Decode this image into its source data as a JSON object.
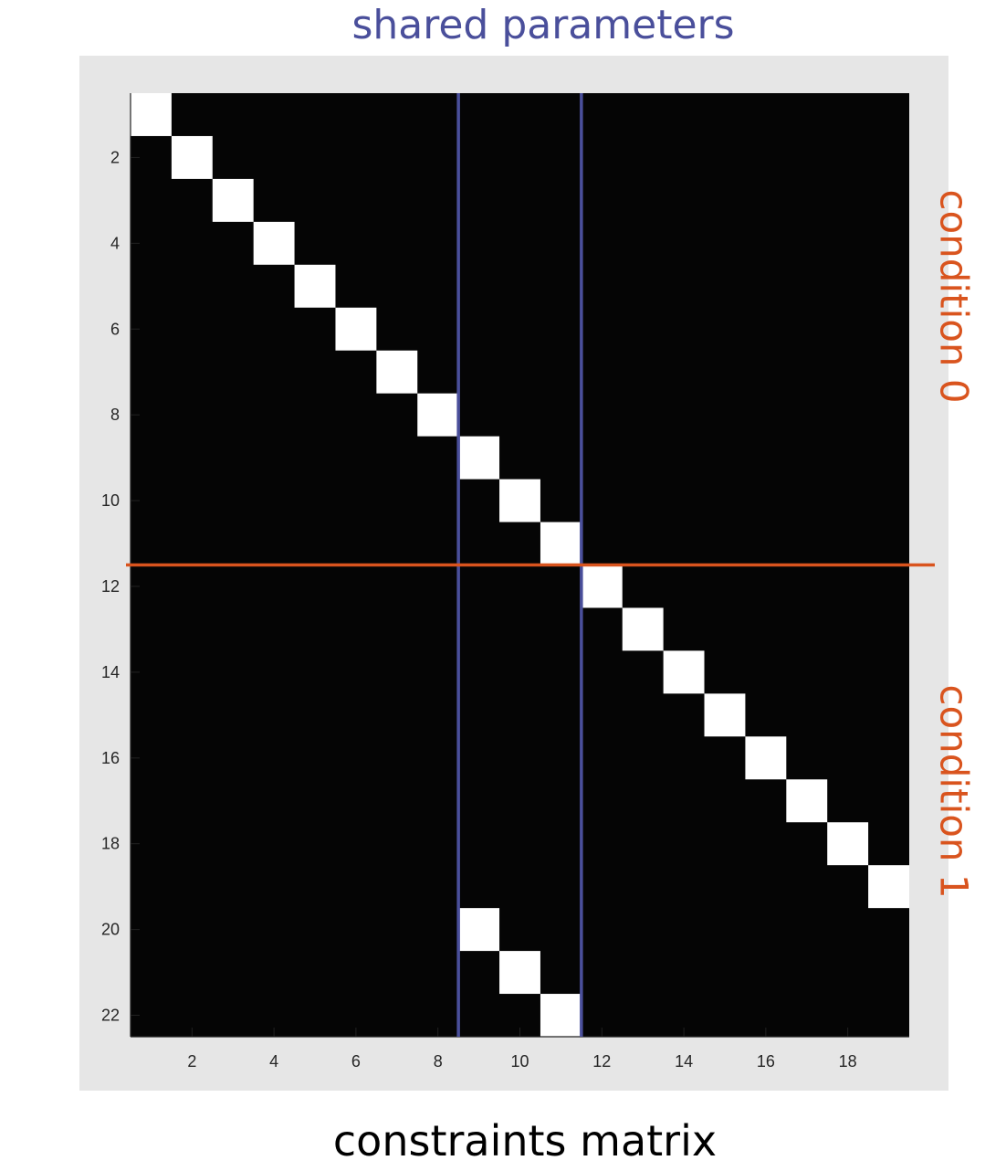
{
  "annotations": {
    "top": "shared parameters",
    "bottom": "constraints matrix",
    "side_upper": "condition 0",
    "side_lower": "condition 1"
  },
  "colors": {
    "background_panel": "#e6e6e6",
    "matrix_zero": "#050505",
    "matrix_one": "#ffffff",
    "shared_lines": "#4a4f9b",
    "condition_line": "#d9541e"
  },
  "chart_data": {
    "type": "heatmap",
    "rows": 22,
    "cols": 19,
    "xlim": [
      0.5,
      19.5
    ],
    "ylim": [
      0.5,
      22.5
    ],
    "y_reversed": true,
    "x_ticks": [
      2,
      4,
      6,
      8,
      10,
      12,
      14,
      16,
      18
    ],
    "y_ticks": [
      2,
      4,
      6,
      8,
      10,
      12,
      14,
      16,
      18,
      20,
      22
    ],
    "ones": [
      [
        1,
        1
      ],
      [
        2,
        2
      ],
      [
        3,
        3
      ],
      [
        4,
        4
      ],
      [
        5,
        5
      ],
      [
        6,
        6
      ],
      [
        7,
        7
      ],
      [
        8,
        8
      ],
      [
        9,
        9
      ],
      [
        10,
        10
      ],
      [
        11,
        11
      ],
      [
        12,
        12
      ],
      [
        13,
        13
      ],
      [
        14,
        14
      ],
      [
        15,
        15
      ],
      [
        16,
        16
      ],
      [
        17,
        17
      ],
      [
        18,
        18
      ],
      [
        19,
        19
      ],
      [
        20,
        9
      ],
      [
        21,
        10
      ],
      [
        22,
        11
      ]
    ],
    "vertical_lines_x": [
      8.5,
      11.5
    ],
    "horizontal_line_y": 11.5
  }
}
